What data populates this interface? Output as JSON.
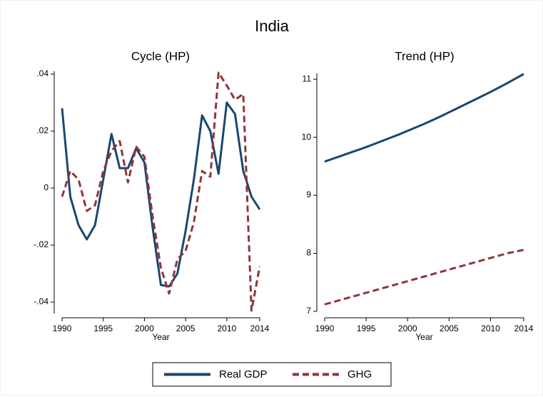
{
  "title": "India",
  "chart_data": [
    {
      "type": "line",
      "title": "Cycle (HP)",
      "xlabel": "Year",
      "x": [
        1990,
        1991,
        1992,
        1993,
        1994,
        1995,
        1996,
        1997,
        1998,
        1999,
        2000,
        2001,
        2002,
        2003,
        2004,
        2005,
        2006,
        2007,
        2008,
        2009,
        2010,
        2011,
        2012,
        2013,
        2014
      ],
      "xlim": [
        1990,
        2014
      ],
      "xticks": [
        1990,
        1995,
        2000,
        2005,
        2010,
        2014
      ],
      "ylim": [
        -0.044,
        0.041
      ],
      "yticks": [
        {
          "value": -0.04,
          "label": "-.04"
        },
        {
          "value": -0.02,
          "label": "-.02"
        },
        0,
        {
          "value": 0.02,
          "label": ".02"
        },
        {
          "value": 0.04,
          "label": ".04"
        }
      ],
      "series": [
        {
          "name": "Real GDP",
          "color": "#1a476f",
          "dash": "solid",
          "values": [
            0.028,
            -0.003,
            -0.013,
            -0.018,
            -0.013,
            0.003,
            0.019,
            0.007,
            0.007,
            0.014,
            0.009,
            -0.014,
            -0.034,
            -0.0345,
            -0.03,
            -0.015,
            0.003,
            0.0255,
            0.02,
            0.005,
            0.03,
            0.026,
            0.006,
            -0.003,
            -0.0075
          ]
        },
        {
          "name": "GHG",
          "color": "#90353b",
          "dash": "dashed",
          "values": [
            -0.003,
            0.006,
            0.003,
            -0.008,
            -0.006,
            0.006,
            0.013,
            0.0165,
            0.002,
            0.0145,
            0.011,
            -0.01,
            -0.028,
            -0.037,
            -0.025,
            -0.022,
            -0.012,
            0.006,
            0.004,
            0.0405,
            0.036,
            0.031,
            0.033,
            -0.043,
            -0.0275
          ]
        }
      ]
    },
    {
      "type": "line",
      "title": "Trend (HP)",
      "xlabel": "Year",
      "x": [
        1990,
        1991,
        1992,
        1993,
        1994,
        1995,
        1996,
        1997,
        1998,
        1999,
        2000,
        2001,
        2002,
        2003,
        2004,
        2005,
        2006,
        2007,
        2008,
        2009,
        2010,
        2011,
        2012,
        2013,
        2014
      ],
      "xlim": [
        1990,
        2014
      ],
      "xticks": [
        1990,
        1995,
        2000,
        2005,
        2010,
        2014
      ],
      "ylim": [
        7,
        11.1
      ],
      "yticks": [
        7,
        8,
        9,
        10,
        11
      ],
      "series": [
        {
          "name": "Real GDP",
          "color": "#1a476f",
          "dash": "solid",
          "values": [
            9.58,
            9.63,
            9.68,
            9.73,
            9.78,
            9.83,
            9.885,
            9.94,
            9.995,
            10.05,
            10.11,
            10.17,
            10.23,
            10.295,
            10.36,
            10.43,
            10.5,
            10.57,
            10.64,
            10.71,
            10.78,
            10.855,
            10.93,
            11.01,
            11.09
          ]
        },
        {
          "name": "GHG",
          "color": "#90353b",
          "dash": "dashed",
          "values": [
            7.12,
            7.16,
            7.2,
            7.24,
            7.28,
            7.32,
            7.36,
            7.4,
            7.44,
            7.48,
            7.52,
            7.56,
            7.6,
            7.64,
            7.68,
            7.72,
            7.76,
            7.8,
            7.84,
            7.88,
            7.92,
            7.96,
            8.0,
            8.03,
            8.06
          ]
        }
      ]
    }
  ]
}
